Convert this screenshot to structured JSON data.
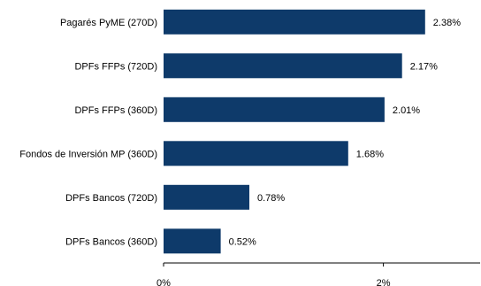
{
  "chart_data": {
    "type": "bar",
    "orientation": "horizontal",
    "categories": [
      "Pagarés PyME (270D)",
      "DPFs FFPs (720D)",
      "DPFs FFPs (360D)",
      "Fondos de Inversión MP (360D)",
      "DPFs Bancos (720D)",
      "DPFs Bancos (360D)"
    ],
    "values": [
      2.38,
      2.17,
      2.01,
      1.68,
      0.78,
      0.52
    ],
    "value_labels": [
      "2.38%",
      "2.17%",
      "2.01%",
      "1.68%",
      "0.78%",
      "0.52%"
    ],
    "xlim": [
      0,
      2.88
    ],
    "xticks": [
      0,
      2
    ],
    "xtick_labels": [
      "0%",
      "2%"
    ],
    "title": "",
    "xlabel": "",
    "ylabel": "",
    "grid": false,
    "legend": "none",
    "bar_color": "#0e3a6a"
  }
}
